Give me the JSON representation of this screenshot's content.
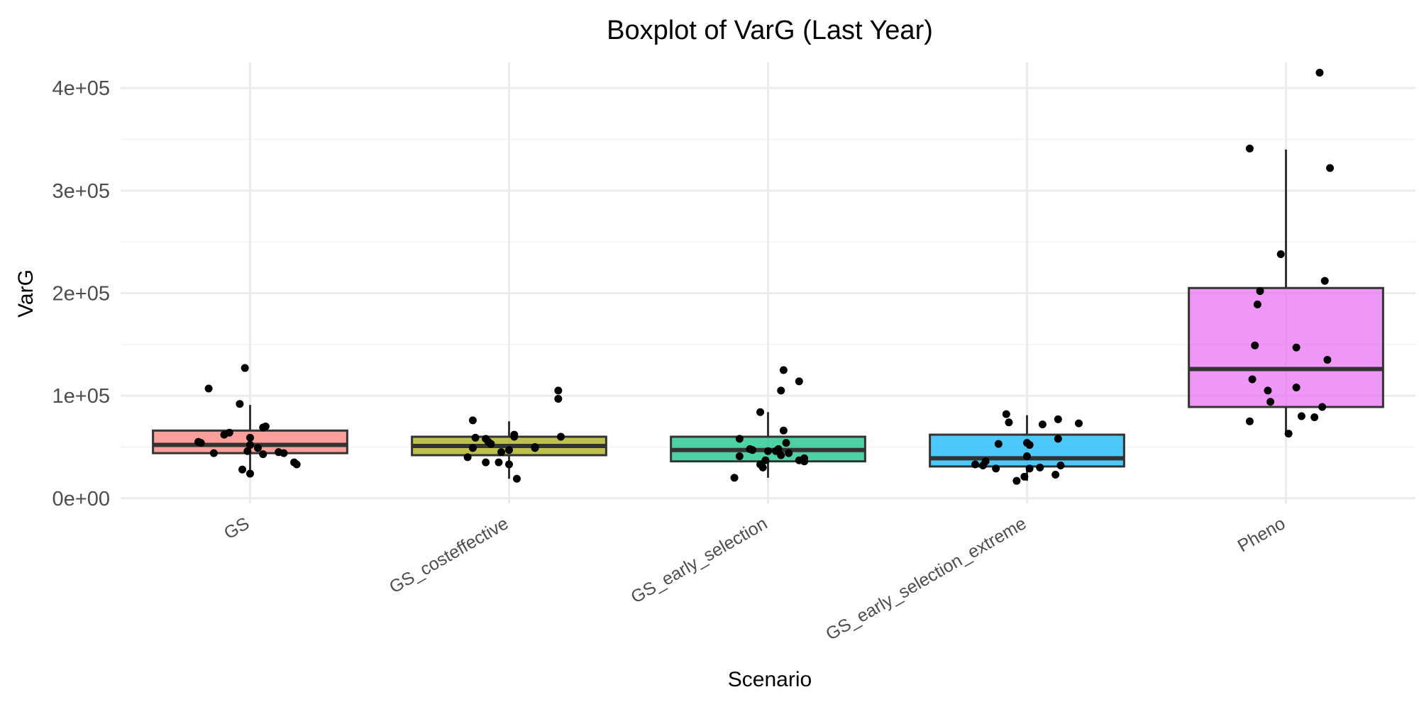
{
  "chart_data": {
    "type": "boxplot",
    "title": "Boxplot of VarG (Last Year)",
    "xlabel": "Scenario",
    "ylabel": "VarG",
    "ylim": [
      -5000,
      425000
    ],
    "yticks": [
      {
        "value": 0,
        "label": "0e+00"
      },
      {
        "value": 100000,
        "label": "1e+05"
      },
      {
        "value": 200000,
        "label": "2e+05"
      },
      {
        "value": 300000,
        "label": "3e+05"
      },
      {
        "value": 400000,
        "label": "4e+05"
      }
    ],
    "grid": true,
    "legend": "none",
    "categories": [
      "GS",
      "GS_costeffective",
      "GS_early_selection",
      "GS_early_selection_extreme",
      "Pheno"
    ],
    "boxes": [
      {
        "category": "GS",
        "color": "#F8766D",
        "q1": 44000,
        "median": 52000,
        "q3": 66000,
        "whisker_low": 24000,
        "whisker_high": 91000,
        "points": [
          [
            -0.16,
            107000
          ],
          [
            -0.02,
            127000
          ],
          [
            -0.2,
            55000
          ],
          [
            -0.19,
            54000
          ],
          [
            -0.14,
            44000
          ],
          [
            -0.1,
            62000
          ],
          [
            -0.08,
            64000
          ],
          [
            -0.03,
            28000
          ],
          [
            0.0,
            24000
          ],
          [
            -0.01,
            46000
          ],
          [
            -0.04,
            92000
          ],
          [
            0.0,
            59000
          ],
          [
            0.0,
            52000
          ],
          [
            0.03,
            49000
          ],
          [
            0.05,
            69000
          ],
          [
            0.06,
            70000
          ],
          [
            0.05,
            43000
          ],
          [
            0.11,
            45000
          ],
          [
            0.13,
            44000
          ],
          [
            0.17,
            35000
          ],
          [
            0.18,
            33000
          ]
        ]
      },
      {
        "category": "GS_costeffective",
        "color": "#A3A500",
        "q1": 42000,
        "median": 51000,
        "q3": 60000,
        "whisker_low": 19000,
        "whisker_high": 75000,
        "points": [
          [
            -0.14,
            76000
          ],
          [
            -0.16,
            40000
          ],
          [
            -0.14,
            49000
          ],
          [
            -0.13,
            59000
          ],
          [
            -0.09,
            58000
          ],
          [
            -0.09,
            35000
          ],
          [
            -0.07,
            53000
          ],
          [
            -0.08,
            55000
          ],
          [
            -0.04,
            35000
          ],
          [
            -0.03,
            45000
          ],
          [
            0.0,
            47000
          ],
          [
            0.02,
            60000
          ],
          [
            0.02,
            62000
          ],
          [
            0.0,
            33000
          ],
          [
            0.03,
            19000
          ],
          [
            0.1,
            50000
          ],
          [
            0.1,
            49000
          ],
          [
            0.19,
            105000
          ],
          [
            0.19,
            97000
          ],
          [
            0.2,
            60000
          ]
        ]
      },
      {
        "category": "GS_early_selection",
        "color": "#00BF7D",
        "q1": 36000,
        "median": 47000,
        "q3": 60000,
        "whisker_low": 20000,
        "whisker_high": 84000,
        "points": [
          [
            -0.13,
            20000
          ],
          [
            -0.11,
            58000
          ],
          [
            -0.11,
            41000
          ],
          [
            -0.07,
            48000
          ],
          [
            -0.06,
            47000
          ],
          [
            -0.03,
            84000
          ],
          [
            -0.03,
            33000
          ],
          [
            -0.02,
            30000
          ],
          [
            -0.01,
            37000
          ],
          [
            0.0,
            46000
          ],
          [
            0.03,
            46000
          ],
          [
            0.04,
            48000
          ],
          [
            0.05,
            42000
          ],
          [
            0.06,
            66000
          ],
          [
            0.07,
            54000
          ],
          [
            0.08,
            44000
          ],
          [
            0.12,
            37000
          ],
          [
            0.14,
            39000
          ],
          [
            0.14,
            36000
          ],
          [
            0.05,
            105000
          ],
          [
            0.06,
            125000
          ],
          [
            0.12,
            114000
          ]
        ]
      },
      {
        "category": "GS_early_selection_extreme",
        "color": "#00B0F6",
        "q1": 31000,
        "median": 39000,
        "q3": 62000,
        "whisker_low": 17000,
        "whisker_high": 81000,
        "points": [
          [
            -0.2,
            33000
          ],
          [
            -0.17,
            32000
          ],
          [
            -0.16,
            36000
          ],
          [
            -0.12,
            29000
          ],
          [
            -0.11,
            53000
          ],
          [
            -0.08,
            82000
          ],
          [
            -0.07,
            74000
          ],
          [
            -0.04,
            17000
          ],
          [
            -0.01,
            21000
          ],
          [
            0.0,
            41000
          ],
          [
            0.01,
            52000
          ],
          [
            0.0,
            54000
          ],
          [
            0.01,
            29000
          ],
          [
            0.05,
            30000
          ],
          [
            0.06,
            72000
          ],
          [
            0.11,
            23000
          ],
          [
            0.12,
            58000
          ],
          [
            0.12,
            77000
          ],
          [
            0.13,
            32000
          ],
          [
            0.2,
            73000
          ]
        ]
      },
      {
        "category": "Pheno",
        "color": "#E76BF3",
        "q1": 89000,
        "median": 126000,
        "q3": 205000,
        "whisker_low": 63000,
        "whisker_high": 340000,
        "points": [
          [
            -0.14,
            341000
          ],
          [
            -0.14,
            75000
          ],
          [
            -0.12,
            149000
          ],
          [
            -0.11,
            189000
          ],
          [
            -0.1,
            202000
          ],
          [
            -0.13,
            116000
          ],
          [
            -0.07,
            105000
          ],
          [
            -0.06,
            94000
          ],
          [
            -0.02,
            238000
          ],
          [
            0.01,
            63000
          ],
          [
            0.04,
            147000
          ],
          [
            0.04,
            108000
          ],
          [
            0.06,
            80000
          ],
          [
            0.11,
            79000
          ],
          [
            0.14,
            89000
          ],
          [
            0.13,
            415000
          ],
          [
            0.15,
            212000
          ],
          [
            0.16,
            135000
          ],
          [
            0.17,
            322000
          ]
        ]
      }
    ]
  }
}
